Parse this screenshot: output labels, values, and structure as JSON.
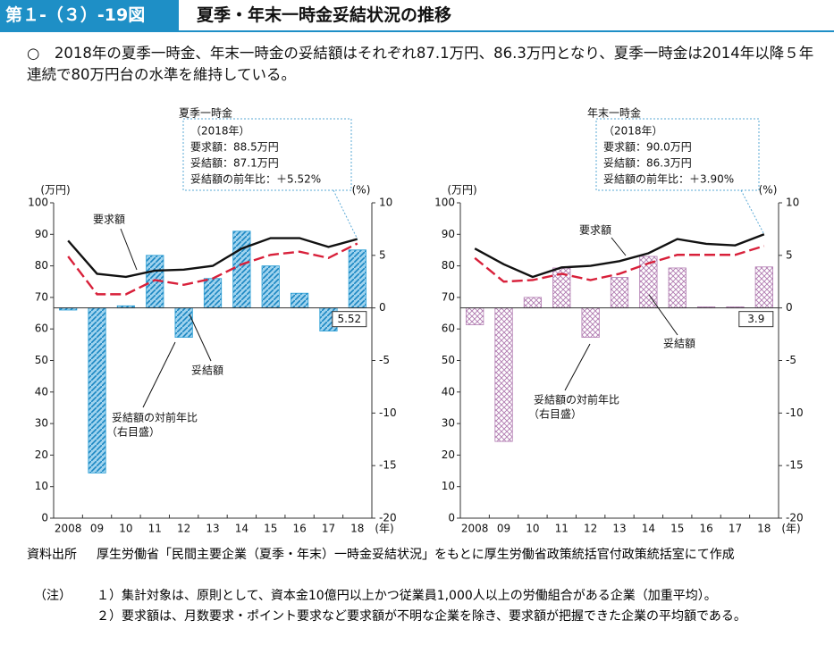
{
  "header": {
    "figure_no": "第１-（３）-19図",
    "title": "夏季・年末一時金妥結状況の推移"
  },
  "summary": "○　2018年の夏季一時金、年末一時金の妥結額はそれぞれ87.1万円、86.3万円となり、夏季一時金は2014年以降５年連続で80万円台の水準を維持している。",
  "chart_data": [
    {
      "type": "bar_line",
      "title": "夏季一時金",
      "callout": [
        "（2018年）",
        "要求額：88.5万円",
        "妥結額：87.1万円",
        "妥結額の前年比：＋5.52%"
      ],
      "categories": [
        "2008",
        "09",
        "10",
        "11",
        "12",
        "13",
        "14",
        "15",
        "16",
        "17",
        "18"
      ],
      "ylabel": "(万円)",
      "y2label": "(%)",
      "xlabel": "(年)",
      "ylim": [
        0,
        100
      ],
      "yticks": [
        0,
        10,
        20,
        30,
        40,
        50,
        60,
        70,
        80,
        90,
        100
      ],
      "y2lim": [
        -20,
        10
      ],
      "y2ticks": [
        -20,
        -15,
        -10,
        -5,
        0,
        5,
        10
      ],
      "series": [
        {
          "name": "要求額",
          "color": "#111111",
          "values": [
            88.0,
            77.5,
            76.5,
            78.5,
            78.8,
            80.0,
            85.5,
            88.8,
            88.8,
            86.0,
            88.5
          ]
        },
        {
          "name": "妥結額",
          "color": "#d8203a",
          "values": [
            83.0,
            71.0,
            71.0,
            75.5,
            74.0,
            76.0,
            80.5,
            83.5,
            84.5,
            82.5,
            87.1
          ]
        },
        {
          "name": "妥結額の対前年比",
          "name_note": "（右目盛）",
          "axis": "y2",
          "color": "#2a9fd6",
          "values": [
            -0.2,
            -15.7,
            0.2,
            5.0,
            -2.8,
            2.8,
            7.3,
            4.0,
            1.4,
            -2.2,
            5.52
          ]
        }
      ]
    },
    {
      "type": "bar_line",
      "title": "年末一時金",
      "callout": [
        "（2018年）",
        "要求額：90.0万円",
        "妥結額：86.3万円",
        "妥結額の前年比：＋3.90%"
      ],
      "categories": [
        "2008",
        "09",
        "10",
        "11",
        "12",
        "13",
        "14",
        "15",
        "16",
        "17",
        "18"
      ],
      "ylabel": "(万円)",
      "y2label": "(%)",
      "xlabel": "(年)",
      "ylim": [
        0,
        100
      ],
      "yticks": [
        0,
        10,
        20,
        30,
        40,
        50,
        60,
        70,
        80,
        90,
        100
      ],
      "y2lim": [
        -20,
        10
      ],
      "y2ticks": [
        -20,
        -15,
        -10,
        -5,
        0,
        5,
        10
      ],
      "series": [
        {
          "name": "要求額",
          "color": "#111111",
          "values": [
            85.5,
            80.5,
            76.5,
            79.5,
            80.0,
            81.5,
            84.0,
            88.5,
            87.0,
            86.5,
            90.0
          ]
        },
        {
          "name": "妥結額",
          "color": "#d8203a",
          "values": [
            82.5,
            75.0,
            75.5,
            77.5,
            75.5,
            77.5,
            80.8,
            83.5,
            83.5,
            83.5,
            86.3
          ]
        },
        {
          "name": "妥結額の対前年比",
          "name_note": "（右目盛）",
          "axis": "y2",
          "color": "#b07ab0",
          "values": [
            -1.6,
            -12.7,
            1.0,
            3.8,
            -2.8,
            2.9,
            4.9,
            3.8,
            0.1,
            0.1,
            3.9
          ]
        }
      ]
    }
  ],
  "source": {
    "label": "資料出所",
    "text": "厚生労働省「民間主要企業（夏季・年末）一時金妥結状況」をもとに厚生労働省政策統括官付政策統括室にて作成"
  },
  "notes": {
    "label": "（注）",
    "items": [
      "１）集計対象は、原則として、資本金10億円以上かつ従業員1,000人以上の労働組合がある企業（加重平均）。",
      "２）要求額は、月数要求・ポイント要求など要求額が不明な企業を除き、要求額が把握できた企業の平均額である。"
    ]
  }
}
